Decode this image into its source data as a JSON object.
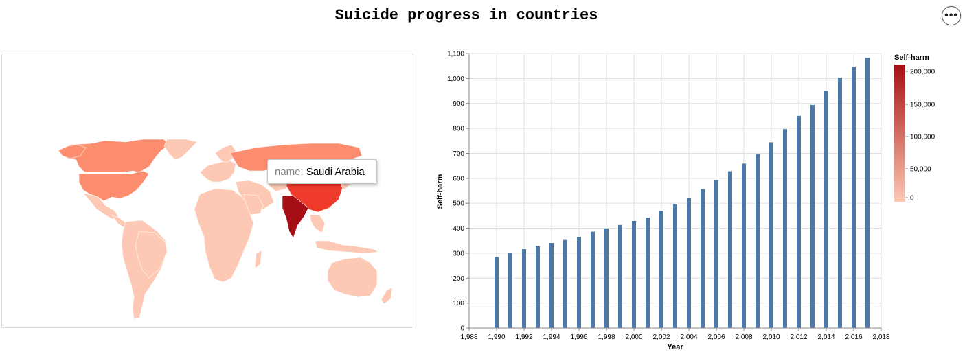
{
  "page": {
    "title": "Suicide progress in countries",
    "menu_icon": "ellipsis-icon"
  },
  "tooltip": {
    "key": "name:",
    "value": "Saudi Arabia"
  },
  "legend": {
    "title": "Self-harm",
    "ticks": [
      "200,000",
      "150,000",
      "100,000",
      "50,000",
      "0"
    ],
    "color_low": "#fdc9b4",
    "color_high": "#a50f15"
  },
  "map_colors": {
    "ocean": "#ffffff",
    "low": "#fdc9b4",
    "mid": "#fc8d6f",
    "high": "#ef3b2c",
    "max": "#a50f15"
  },
  "chart_data": {
    "type": "bar",
    "title": "",
    "xlabel": "Year",
    "ylabel": "Self-harm",
    "x_tick_labels": [
      "1,988",
      "1,990",
      "1,992",
      "1,994",
      "1,996",
      "1,998",
      "2,000",
      "2,002",
      "2,004",
      "2,006",
      "2,008",
      "2,010",
      "2,012",
      "2,014",
      "2,016",
      "2,018"
    ],
    "y_tick_labels": [
      "0",
      "100",
      "200",
      "300",
      "400",
      "500",
      "600",
      "700",
      "800",
      "900",
      "1,000",
      "1,100"
    ],
    "xlim": [
      1988,
      2018
    ],
    "ylim": [
      0,
      1100
    ],
    "grid": true,
    "bar_color": "#4c78a8",
    "x": [
      1990,
      1991,
      1992,
      1993,
      1994,
      1995,
      1996,
      1997,
      1998,
      1999,
      2000,
      2001,
      2002,
      2003,
      2004,
      2005,
      2006,
      2007,
      2008,
      2009,
      2010,
      2011,
      2012,
      2013,
      2014,
      2015,
      2016,
      2017
    ],
    "values": [
      285,
      302,
      316,
      329,
      341,
      353,
      365,
      386,
      399,
      413,
      429,
      442,
      470,
      496,
      521,
      557,
      593,
      628,
      659,
      697,
      744,
      797,
      850,
      894,
      951,
      1003,
      1046,
      1083
    ]
  }
}
